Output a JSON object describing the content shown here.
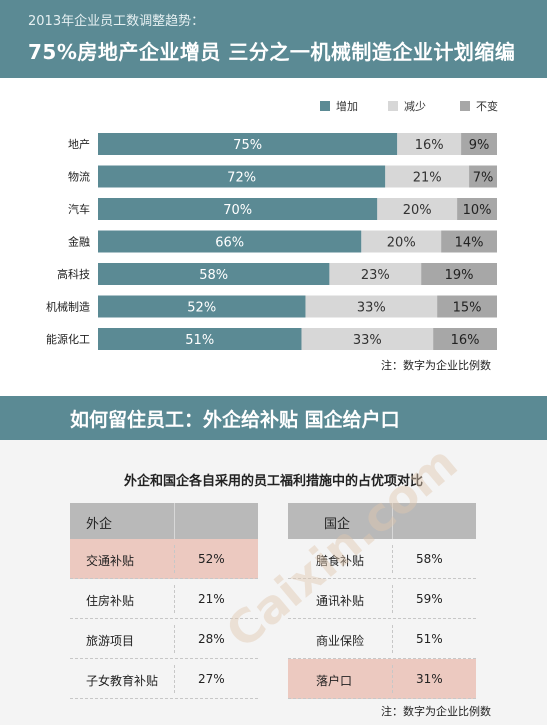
{
  "header": {
    "subtitle": "2013年企业员工数调整趋势：",
    "title": "75%房地产企业增员  三分之一机械制造企业计划缩编"
  },
  "colors": {
    "increase": "#5b8a94",
    "decrease": "#d7d7d7",
    "unchanged": "#a7a7a7",
    "header_bg": "#5b8a94",
    "highlight": "#ecc9c0"
  },
  "chart_data": {
    "type": "bar",
    "orientation": "horizontal-stacked",
    "categories": [
      "地产",
      "物流",
      "汽车",
      "金融",
      "高科技",
      "机械制造",
      "能源化工"
    ],
    "series": [
      {
        "name": "增加",
        "values": [
          75,
          72,
          70,
          66,
          58,
          52,
          51
        ]
      },
      {
        "name": "减少",
        "values": [
          16,
          21,
          20,
          20,
          23,
          33,
          33
        ]
      },
      {
        "name": "不变",
        "values": [
          9,
          7,
          10,
          14,
          19,
          15,
          16
        ]
      }
    ],
    "value_labels": [
      [
        "75%",
        "16%",
        "9%"
      ],
      [
        "72%",
        "21%",
        "7%"
      ],
      [
        "70%",
        "20%",
        "10%"
      ],
      [
        "66%",
        "20%",
        "14%"
      ],
      [
        "58%",
        "23%",
        "19%"
      ],
      [
        "52%",
        "33%",
        "15%"
      ],
      [
        "51%",
        "33%",
        "16%"
      ]
    ],
    "legend_position": "top-right"
  },
  "legend": {
    "increase": "增加",
    "decrease": "减少",
    "unchanged": "不变"
  },
  "note_upper": "注：数字为企业比例数",
  "band_title": "如何留住员工：外企给补贴  国企给户口",
  "lower": {
    "title": "外企和国企各自采用的员工福利措施中的占优项对比",
    "foreign": {
      "header": "外企",
      "rows": [
        {
          "name": "交通补贴",
          "value": "52%"
        },
        {
          "name": "住房补贴",
          "value": "21%"
        },
        {
          "name": "旅游项目",
          "value": "28%"
        },
        {
          "name": "子女教育补贴",
          "value": "27%"
        }
      ]
    },
    "state": {
      "header": "国企",
      "rows": [
        {
          "name": "膳食补贴",
          "value": "58%"
        },
        {
          "name": "通讯补贴",
          "value": "59%"
        },
        {
          "name": "商业保险",
          "value": "51%"
        },
        {
          "name": "落户口",
          "value": "31%"
        }
      ]
    },
    "note": "注：数字为企业比例数"
  },
  "watermark": "Caixin.com"
}
